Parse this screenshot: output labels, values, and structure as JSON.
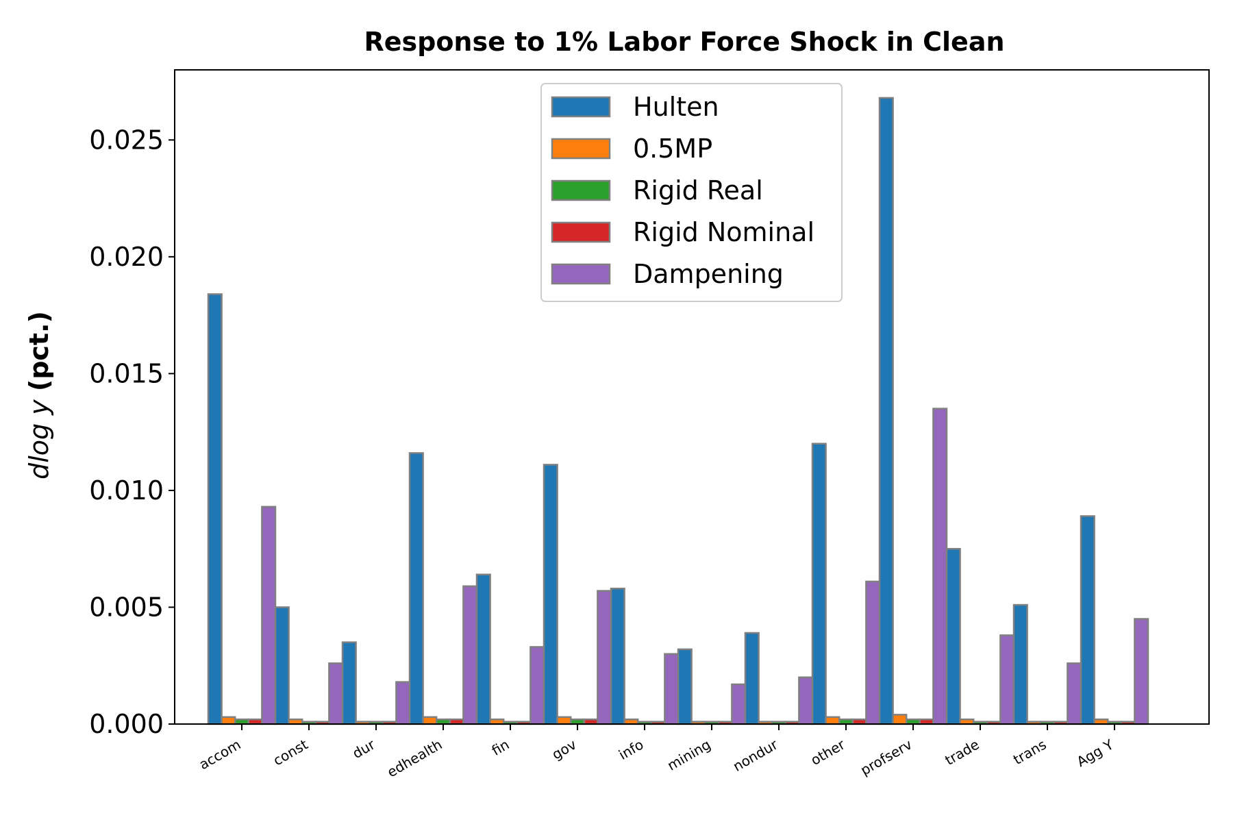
{
  "chart_data": {
    "type": "bar",
    "title": "Response to 1% Labor Force Shock in Clean",
    "ylabel_math": "dlog y",
    "ylabel_bold": "(pct.)",
    "xlabel": "",
    "ylim": [
      0,
      0.028
    ],
    "yticks": [
      0.0,
      0.005,
      0.01,
      0.015,
      0.02,
      0.025
    ],
    "ytick_labels": [
      "0.000",
      "0.005",
      "0.010",
      "0.015",
      "0.020",
      "0.025"
    ],
    "categories": [
      "accom",
      "const",
      "dur",
      "edhealth",
      "fin",
      "gov",
      "info",
      "mining",
      "nondur",
      "other",
      "profserv",
      "trade",
      "trans",
      "Agg Y"
    ],
    "series": [
      {
        "name": "Hulten",
        "color": "#1f77b4",
        "values": [
          0.0184,
          0.005,
          0.0035,
          0.0116,
          0.0064,
          0.0111,
          0.0058,
          0.0032,
          0.0039,
          0.012,
          0.0268,
          0.0075,
          0.0051,
          0.0089
        ]
      },
      {
        "name": "0.5MP",
        "color": "#ff7f0e",
        "values": [
          0.0003,
          0.0002,
          0.0001,
          0.0003,
          0.0002,
          0.0003,
          0.0002,
          0.0001,
          0.0001,
          0.0003,
          0.0004,
          0.0002,
          0.0001,
          0.0002
        ]
      },
      {
        "name": "Rigid Real",
        "color": "#2ca02c",
        "values": [
          0.0002,
          0.0001,
          0.0001,
          0.0002,
          0.0001,
          0.0002,
          0.0001,
          0.0001,
          0.0001,
          0.0002,
          0.0002,
          0.0001,
          0.0001,
          0.0001
        ]
      },
      {
        "name": "Rigid Nominal",
        "color": "#d62728",
        "values": [
          0.0002,
          0.0001,
          0.0001,
          0.0002,
          0.0001,
          0.0002,
          0.0001,
          0.0001,
          0.0001,
          0.0002,
          0.0002,
          0.0001,
          0.0001,
          0.0001
        ]
      },
      {
        "name": "Dampening",
        "color": "#9467bd",
        "values": [
          0.0093,
          0.0026,
          0.0018,
          0.0059,
          0.0033,
          0.0057,
          0.003,
          0.0017,
          0.002,
          0.0061,
          0.0135,
          0.0038,
          0.0026,
          0.0045
        ]
      }
    ],
    "legend_position": "upper center",
    "bar_edge_color": "#808080",
    "grid": false
  }
}
